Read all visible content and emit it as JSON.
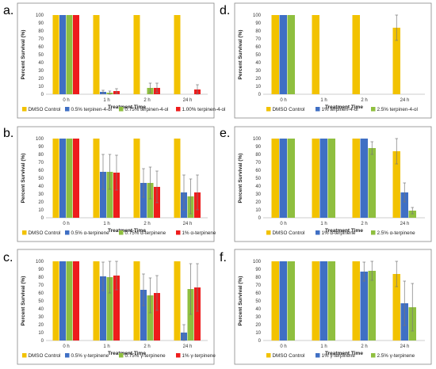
{
  "chart_data": [
    {
      "panel": "a.",
      "type": "bar",
      "categories": [
        "0 h",
        "1 h",
        "2 h",
        "24 h"
      ],
      "xlabel": "Treatment Time",
      "ylabel": "Percent Survival (%)",
      "ylim": [
        0,
        100
      ],
      "yticks": [
        "0",
        "10",
        "20",
        "30",
        "40",
        "50",
        "60",
        "70",
        "80",
        "90",
        "100"
      ],
      "grid": false,
      "legend": "bottom",
      "series": [
        {
          "name": "DMSO Control",
          "color": "#f2c200",
          "values": [
            100,
            100,
            100,
            100
          ],
          "errors": [
            0,
            0,
            0,
            0
          ]
        },
        {
          "name": "0.5% terpinen-4-ol",
          "color": "#3f6fc4",
          "values": [
            100,
            3,
            0,
            0
          ],
          "errors": [
            0,
            2,
            0,
            0
          ]
        },
        {
          "name": "0.75% terpinen-4-ol",
          "color": "#8fbf3f",
          "values": [
            100,
            2,
            8,
            0
          ],
          "errors": [
            0,
            2,
            6,
            0
          ]
        },
        {
          "name": "1.00% terpinen-4-ol",
          "color": "#ee1c1c",
          "values": [
            100,
            4,
            8,
            6
          ],
          "errors": [
            0,
            3,
            6,
            6
          ]
        }
      ]
    },
    {
      "panel": "b.",
      "type": "bar",
      "categories": [
        "0 h",
        "1 h",
        "2 h",
        "24 h"
      ],
      "xlabel": "Treatment Time",
      "ylabel": "Percent Survival (%)",
      "ylim": [
        0,
        100
      ],
      "yticks": [
        "0",
        "10",
        "20",
        "30",
        "40",
        "50",
        "60",
        "70",
        "80",
        "90",
        "100"
      ],
      "grid": false,
      "legend": "bottom",
      "series": [
        {
          "name": "DMSO Control",
          "color": "#f2c200",
          "values": [
            100,
            100,
            100,
            100
          ],
          "errors": [
            0,
            0,
            0,
            0
          ]
        },
        {
          "name": "0.5% α-terpinene",
          "color": "#3f6fc4",
          "values": [
            100,
            58,
            44,
            32
          ],
          "errors": [
            0,
            22,
            18,
            22
          ]
        },
        {
          "name": "0.75% α-terpinene",
          "color": "#8fbf3f",
          "values": [
            100,
            58,
            44,
            27
          ],
          "errors": [
            0,
            22,
            20,
            22
          ]
        },
        {
          "name": "1% α-terpinene",
          "color": "#ee1c1c",
          "values": [
            100,
            57,
            39,
            32
          ],
          "errors": [
            0,
            22,
            20,
            22
          ]
        }
      ]
    },
    {
      "panel": "c.",
      "type": "bar",
      "categories": [
        "0 h",
        "1 h",
        "2 h",
        "24 h"
      ],
      "xlabel": "Treatment Time",
      "ylabel": "Percent Survival (%)",
      "ylim": [
        0,
        100
      ],
      "yticks": [
        "0",
        "10",
        "20",
        "30",
        "40",
        "50",
        "60",
        "70",
        "80",
        "90",
        "100"
      ],
      "grid": false,
      "legend": "bottom",
      "series": [
        {
          "name": "DMSO Control",
          "color": "#f2c200",
          "values": [
            100,
            100,
            100,
            100
          ],
          "errors": [
            0,
            0,
            0,
            0
          ]
        },
        {
          "name": "0.5% γ-terpinene",
          "color": "#3f6fc4",
          "values": [
            100,
            81,
            64,
            10
          ],
          "errors": [
            0,
            18,
            20,
            10
          ]
        },
        {
          "name": "0.75% γ-terpinene",
          "color": "#8fbf3f",
          "values": [
            100,
            80,
            57,
            65
          ],
          "errors": [
            0,
            20,
            22,
            32
          ]
        },
        {
          "name": "1% γ-terpinene",
          "color": "#ee1c1c",
          "values": [
            100,
            82,
            60,
            67
          ],
          "errors": [
            0,
            18,
            22,
            30
          ]
        }
      ]
    },
    {
      "panel": "d.",
      "type": "bar",
      "categories": [
        "0 h",
        "1 h",
        "2 h",
        "24 h"
      ],
      "xlabel": "Treatment Time",
      "ylabel": "Percent Survival (%)",
      "ylim": [
        0,
        100
      ],
      "yticks": [
        "0",
        "10",
        "20",
        "30",
        "40",
        "50",
        "60",
        "70",
        "80",
        "90",
        "100"
      ],
      "grid": false,
      "legend": "bottom",
      "series": [
        {
          "name": "DMSO Control",
          "color": "#f2c200",
          "values": [
            100,
            100,
            100,
            84
          ],
          "errors": [
            0,
            0,
            0,
            16
          ]
        },
        {
          "name": "1% terpinen-4-ol",
          "color": "#3f6fc4",
          "values": [
            100,
            0,
            0,
            0
          ],
          "errors": [
            0,
            0,
            0,
            0
          ]
        },
        {
          "name": "2.5% terpinen-4-ol",
          "color": "#8fbf3f",
          "values": [
            100,
            0,
            0,
            0
          ],
          "errors": [
            0,
            0,
            0,
            0
          ]
        }
      ]
    },
    {
      "panel": "e.",
      "type": "bar",
      "categories": [
        "0 h",
        "1 h",
        "2 h",
        "24 h"
      ],
      "xlabel": "Treatment Time",
      "ylabel": "Percent Survival (%)",
      "ylim": [
        0,
        100
      ],
      "yticks": [
        "0",
        "10",
        "20",
        "30",
        "40",
        "50",
        "60",
        "70",
        "80",
        "90",
        "100"
      ],
      "grid": false,
      "legend": "bottom",
      "series": [
        {
          "name": "DMSO Control",
          "color": "#f2c200",
          "values": [
            100,
            100,
            100,
            84
          ],
          "errors": [
            0,
            0,
            0,
            16
          ]
        },
        {
          "name": "1% α-terpinene",
          "color": "#3f6fc4",
          "values": [
            100,
            100,
            100,
            32
          ],
          "errors": [
            0,
            0,
            0,
            12
          ]
        },
        {
          "name": "2.5% α-terpinene",
          "color": "#8fbf3f",
          "values": [
            100,
            100,
            88,
            9
          ],
          "errors": [
            0,
            0,
            8,
            4
          ]
        }
      ]
    },
    {
      "panel": "f.",
      "type": "bar",
      "categories": [
        "0 h",
        "1 h",
        "2 h",
        "24 h"
      ],
      "xlabel": "Treatment Time",
      "ylabel": "Percent Survival (%)",
      "ylim": [
        0,
        100
      ],
      "yticks": [
        "0",
        "10",
        "20",
        "30",
        "40",
        "50",
        "60",
        "70",
        "80",
        "90",
        "100"
      ],
      "grid": false,
      "legend": "bottom",
      "series": [
        {
          "name": "DMSO Control",
          "color": "#f2c200",
          "values": [
            100,
            100,
            100,
            84
          ],
          "errors": [
            0,
            0,
            0,
            16
          ]
        },
        {
          "name": "1% γ-terpinene",
          "color": "#3f6fc4",
          "values": [
            100,
            100,
            87,
            47
          ],
          "errors": [
            0,
            0,
            12,
            28
          ]
        },
        {
          "name": "2.5% γ-terpinene",
          "color": "#8fbf3f",
          "values": [
            100,
            100,
            88,
            42
          ],
          "errors": [
            0,
            0,
            12,
            30
          ]
        }
      ]
    }
  ]
}
